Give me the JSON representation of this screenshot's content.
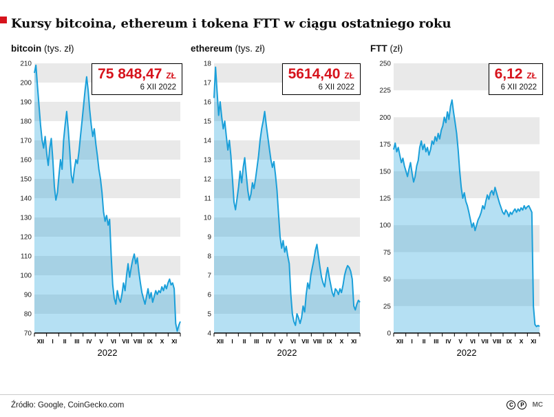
{
  "title": "Kursy bitcoina, ethereum i tokena FTT w ciągu ostatniego roku",
  "footer": {
    "source": "Źródło: Google, CoinGecko.com",
    "license_c": "C",
    "license_p": "P",
    "credits": "MC"
  },
  "colors": {
    "accent_red": "#d6131c",
    "line_blue": "#1a9fd9",
    "stripe_gray": "#e9e9e9",
    "area_blue": "rgba(26,159,217,0.32)"
  },
  "chart_data": [
    {
      "type": "line",
      "title": "bitcoin",
      "unit_label": "(tys. zł)",
      "xlabel": "2022",
      "categories": [
        "XII",
        "I",
        "II",
        "III",
        "IV",
        "V",
        "VI",
        "VII",
        "VIII",
        "IX",
        "X",
        "XI"
      ],
      "ylim": [
        70,
        210
      ],
      "ystep": 10,
      "values": [
        205,
        209,
        198,
        188,
        178,
        170,
        166,
        172,
        163,
        157,
        166,
        171,
        160,
        146,
        139,
        143,
        152,
        160,
        155,
        170,
        178,
        185,
        176,
        165,
        152,
        148,
        155,
        160,
        158,
        164,
        172,
        180,
        188,
        196,
        203,
        196,
        186,
        178,
        172,
        176,
        168,
        162,
        155,
        150,
        143,
        133,
        128,
        131,
        126,
        129,
        110,
        95,
        88,
        85,
        92,
        88,
        86,
        90,
        96,
        92,
        100,
        106,
        99,
        104,
        108,
        111,
        106,
        109,
        102,
        96,
        91,
        88,
        85,
        89,
        93,
        88,
        91,
        86,
        89,
        92,
        90,
        92,
        91,
        94,
        92,
        95,
        93,
        96,
        98,
        95,
        96,
        93,
        75,
        71,
        74,
        76
      ],
      "callout": {
        "value": "75 848,47",
        "currency": "ZŁ",
        "date": "6 XII 2022"
      }
    },
    {
      "type": "line",
      "title": "ethereum",
      "unit_label": "(tys. zł)",
      "xlabel": "2022",
      "categories": [
        "XII",
        "I",
        "II",
        "III",
        "IV",
        "V",
        "VI",
        "VII",
        "VIII",
        "IX",
        "X",
        "XI"
      ],
      "ylim": [
        4,
        18
      ],
      "ystep": 1,
      "values": [
        16.2,
        17.8,
        16.5,
        15.3,
        16.0,
        15.2,
        14.6,
        15.0,
        14.2,
        13.5,
        14.0,
        13.2,
        12.0,
        10.8,
        10.4,
        11.0,
        11.6,
        12.4,
        11.8,
        12.6,
        13.1,
        12.2,
        11.4,
        10.9,
        11.2,
        11.8,
        11.5,
        12.0,
        12.6,
        13.2,
        14.0,
        14.6,
        15.0,
        15.5,
        14.8,
        14.2,
        13.6,
        13.0,
        12.6,
        12.9,
        12.2,
        11.4,
        10.2,
        9.0,
        8.4,
        8.8,
        8.2,
        8.5,
        8.0,
        7.6,
        6.0,
        5.0,
        4.6,
        4.4,
        5.0,
        4.8,
        4.5,
        4.8,
        5.4,
        5.1,
        6.0,
        6.6,
        6.3,
        7.0,
        7.4,
        7.8,
        8.3,
        8.6,
        8.0,
        7.4,
        6.9,
        6.6,
        6.4,
        7.0,
        7.4,
        6.9,
        6.5,
        6.1,
        5.9,
        6.3,
        6.2,
        6.0,
        6.3,
        6.1,
        6.5,
        7.0,
        7.3,
        7.5,
        7.4,
        7.2,
        6.8,
        5.4,
        5.2,
        5.5,
        5.7,
        5.6
      ],
      "callout": {
        "value": "5614,40",
        "currency": "ZŁ",
        "date": "6 XII 2022"
      }
    },
    {
      "type": "line",
      "title": "FTT",
      "unit_label": "(zł)",
      "xlabel": "2022",
      "categories": [
        "XII",
        "I",
        "II",
        "III",
        "IV",
        "V",
        "VI",
        "VII",
        "VIII",
        "IX",
        "X",
        "XI"
      ],
      "ylim": [
        0,
        250
      ],
      "ystep": 25,
      "values": [
        170,
        176,
        168,
        172,
        165,
        158,
        162,
        155,
        150,
        145,
        152,
        158,
        148,
        140,
        145,
        155,
        160,
        172,
        178,
        170,
        175,
        168,
        172,
        165,
        170,
        178,
        175,
        182,
        178,
        185,
        180,
        188,
        192,
        200,
        195,
        205,
        198,
        210,
        216,
        205,
        195,
        185,
        170,
        150,
        135,
        125,
        130,
        122,
        118,
        112,
        105,
        98,
        102,
        95,
        100,
        105,
        108,
        112,
        118,
        115,
        122,
        128,
        124,
        130,
        132,
        128,
        135,
        130,
        125,
        120,
        116,
        112,
        110,
        114,
        112,
        108,
        112,
        110,
        113,
        115,
        112,
        115,
        113,
        116,
        114,
        118,
        115,
        117,
        118,
        115,
        112,
        25,
        8,
        6,
        7,
        6.1
      ],
      "callout": {
        "value": "6,12",
        "currency": "ZŁ",
        "date": "6 XII 2022"
      }
    }
  ]
}
